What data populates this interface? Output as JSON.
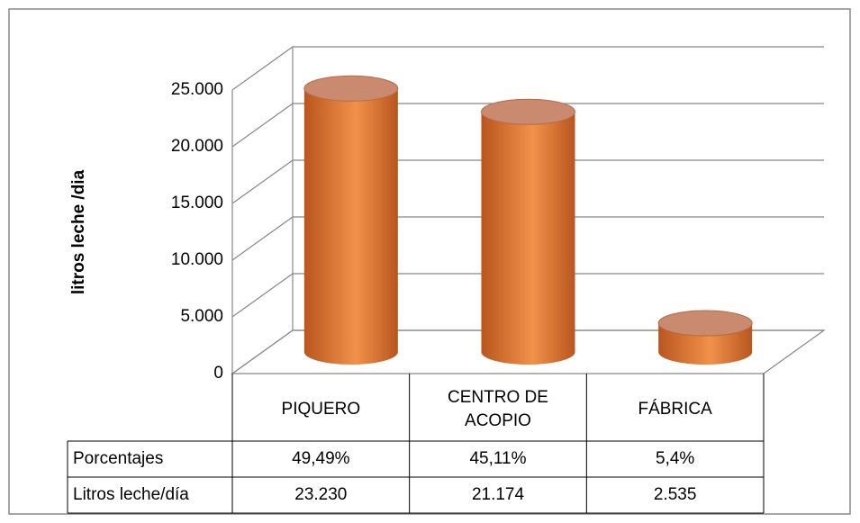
{
  "chart_data": {
    "type": "cylinder",
    "y_axis_label": "litros leche /dia",
    "categories": [
      "PIQUERO",
      "CENTRO DE ACOPIO",
      "FÁBRICA"
    ],
    "series": [
      {
        "name": "Litros leche/día",
        "color": "#e8843a",
        "values": [
          23230,
          21174,
          2535
        ],
        "value_labels": [
          "23.230",
          "21.174",
          "2.535"
        ]
      }
    ],
    "percentages": {
      "name": "Porcentajes",
      "values": [
        49.49,
        45.11,
        5.4
      ],
      "value_labels": [
        "49,49%",
        "45,11%",
        "5,4%"
      ]
    },
    "ylim": [
      0,
      25000
    ],
    "yticks": [
      0,
      {
        "value": 5000,
        "label": "5.000"
      },
      {
        "value": 10000,
        "label": "10.000"
      },
      {
        "value": 15000,
        "label": "15.000"
      },
      {
        "value": 20000,
        "label": "20.000"
      },
      {
        "value": 25000,
        "label": "25.000"
      }
    ],
    "grid": true
  }
}
